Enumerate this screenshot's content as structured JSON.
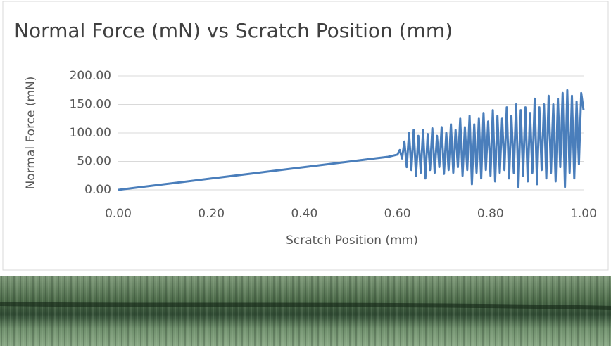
{
  "chart_data": {
    "type": "line",
    "title": "Normal Force (mN) vs Scratch Position (mm)",
    "x_label": "Scratch Position (mm)",
    "y_label": "Normal Force (mN)",
    "color": "#4a7ebb",
    "xlim": [
      0,
      1
    ],
    "ylim": [
      0,
      200
    ],
    "xticks": [
      {
        "value": 0,
        "label": "0.00"
      },
      {
        "value": 0.2,
        "label": "0.20"
      },
      {
        "value": 0.4,
        "label": "0.40"
      },
      {
        "value": 0.6,
        "label": "0.60"
      },
      {
        "value": 0.8,
        "label": "0.80"
      },
      {
        "value": 1,
        "label": "1.00"
      }
    ],
    "yticks": [
      {
        "value": 0,
        "label": "0.00"
      },
      {
        "value": 50,
        "label": "50.00"
      },
      {
        "value": 100,
        "label": "100.00"
      },
      {
        "value": 150,
        "label": "150.00"
      },
      {
        "value": 200,
        "label": "200.00"
      }
    ],
    "grid": true,
    "x": [
      0,
      0.1,
      0.2,
      0.3,
      0.4,
      0.5,
      0.55,
      0.58,
      0.6,
      0.605,
      0.61,
      0.615,
      0.62,
      0.625,
      0.63,
      0.635,
      0.64,
      0.645,
      0.65,
      0.655,
      0.66,
      0.665,
      0.67,
      0.675,
      0.68,
      0.685,
      0.69,
      0.695,
      0.7,
      0.705,
      0.71,
      0.715,
      0.72,
      0.725,
      0.73,
      0.735,
      0.74,
      0.745,
      0.75,
      0.755,
      0.76,
      0.765,
      0.77,
      0.775,
      0.78,
      0.785,
      0.79,
      0.795,
      0.8,
      0.805,
      0.81,
      0.815,
      0.82,
      0.825,
      0.83,
      0.835,
      0.84,
      0.845,
      0.85,
      0.855,
      0.86,
      0.865,
      0.87,
      0.875,
      0.88,
      0.885,
      0.89,
      0.895,
      0.9,
      0.905,
      0.91,
      0.915,
      0.92,
      0.925,
      0.93,
      0.935,
      0.94,
      0.945,
      0.95,
      0.955,
      0.96,
      0.965,
      0.97,
      0.975,
      0.98,
      0.985,
      0.99,
      0.995,
      1
    ],
    "values": [
      0,
      10,
      20,
      30,
      40,
      50,
      55,
      58,
      62,
      70,
      55,
      85,
      40,
      100,
      35,
      105,
      25,
      95,
      30,
      105,
      20,
      98,
      35,
      108,
      30,
      95,
      40,
      110,
      28,
      100,
      35,
      115,
      30,
      105,
      40,
      125,
      25,
      110,
      35,
      130,
      10,
      115,
      30,
      125,
      20,
      135,
      35,
      120,
      25,
      140,
      15,
      130,
      30,
      125,
      35,
      145,
      20,
      130,
      30,
      150,
      5,
      140,
      25,
      145,
      15,
      135,
      30,
      160,
      10,
      145,
      35,
      150,
      20,
      165,
      30,
      150,
      15,
      160,
      40,
      170,
      5,
      175,
      30,
      165,
      20,
      155,
      45,
      170,
      140
    ]
  }
}
